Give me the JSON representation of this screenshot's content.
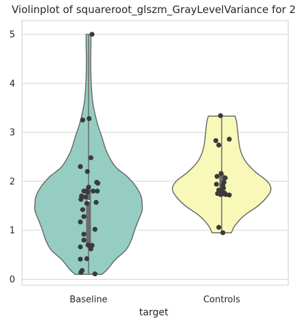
{
  "chart_data": {
    "type": "violin",
    "title": "Violinplot of squareroot_glszm_GrayLevelVariance for 2",
    "xlabel": "target",
    "ylabel": "",
    "categories": [
      "Baseline",
      "Controls"
    ],
    "ylim": [
      -0.12,
      5.28
    ],
    "yticks": [
      0,
      1,
      2,
      3,
      4,
      5
    ],
    "grid": "horizontal",
    "colors": {
      "Baseline": "#95cdc2",
      "Controls": "#f8f8b9",
      "outline": "#6b6b6b",
      "points": "#3a3a3a"
    },
    "violins": [
      {
        "category": "Baseline",
        "range": [
          0.1,
          5.0
        ],
        "box": {
          "q1": 0.68,
          "median": 1.6,
          "q3": 1.85
        },
        "profile": [
          [
            0.1,
            0.25
          ],
          [
            0.2,
            0.35
          ],
          [
            0.4,
            0.5
          ],
          [
            0.6,
            0.7
          ],
          [
            0.8,
            0.8
          ],
          [
            1.0,
            0.86
          ],
          [
            1.2,
            0.93
          ],
          [
            1.4,
            1.0
          ],
          [
            1.55,
            1.0
          ],
          [
            1.7,
            0.98
          ],
          [
            1.9,
            0.88
          ],
          [
            2.1,
            0.72
          ],
          [
            2.3,
            0.5
          ],
          [
            2.6,
            0.34
          ],
          [
            2.9,
            0.25
          ],
          [
            3.2,
            0.16
          ],
          [
            3.6,
            0.08
          ],
          [
            4.0,
            0.05
          ],
          [
            4.4,
            0.04
          ],
          [
            4.8,
            0.045
          ],
          [
            5.0,
            0.045
          ]
        ],
        "points": [
          {
            "x": 0.06,
            "y": 5.0
          },
          {
            "x": -0.1,
            "y": 3.25
          },
          {
            "x": 0.01,
            "y": 3.28
          },
          {
            "x": 0.04,
            "y": 2.48
          },
          {
            "x": -0.14,
            "y": 2.3
          },
          {
            "x": -0.02,
            "y": 2.2
          },
          {
            "x": 0.14,
            "y": 1.98
          },
          {
            "x": 0.16,
            "y": 1.96
          },
          {
            "x": 0.0,
            "y": 1.88
          },
          {
            "x": -0.08,
            "y": 1.8
          },
          {
            "x": -0.04,
            "y": 1.8
          },
          {
            "x": 0.08,
            "y": 1.8
          },
          {
            "x": 0.15,
            "y": 1.8
          },
          {
            "x": -0.02,
            "y": 1.78
          },
          {
            "x": -0.12,
            "y": 1.7
          },
          {
            "x": -0.05,
            "y": 1.68
          },
          {
            "x": -0.13,
            "y": 1.63
          },
          {
            "x": 0.13,
            "y": 1.57
          },
          {
            "x": -0.03,
            "y": 1.55
          },
          {
            "x": -0.1,
            "y": 1.42
          },
          {
            "x": -0.08,
            "y": 1.28
          },
          {
            "x": -0.14,
            "y": 1.17
          },
          {
            "x": 0.11,
            "y": 1.02
          },
          {
            "x": -0.08,
            "y": 0.92
          },
          {
            "x": -0.08,
            "y": 0.8
          },
          {
            "x": -0.01,
            "y": 0.7
          },
          {
            "x": 0.02,
            "y": 0.68
          },
          {
            "x": 0.06,
            "y": 0.69
          },
          {
            "x": -0.14,
            "y": 0.66
          },
          {
            "x": 0.04,
            "y": 0.62
          },
          {
            "x": -0.14,
            "y": 0.41
          },
          {
            "x": -0.03,
            "y": 0.42
          },
          {
            "x": -0.11,
            "y": 0.18
          },
          {
            "x": -0.13,
            "y": 0.14
          },
          {
            "x": 0.11,
            "y": 0.11
          }
        ]
      },
      {
        "category": "Controls",
        "range": [
          0.95,
          3.33
        ],
        "box": {
          "q1": 1.73,
          "median": 1.82,
          "q3": 2.15
        },
        "profile": [
          [
            0.95,
            0.18
          ],
          [
            1.1,
            0.25
          ],
          [
            1.3,
            0.42
          ],
          [
            1.5,
            0.68
          ],
          [
            1.7,
            0.86
          ],
          [
            1.85,
            0.92
          ],
          [
            2.0,
            0.85
          ],
          [
            2.2,
            0.62
          ],
          [
            2.4,
            0.45
          ],
          [
            2.6,
            0.36
          ],
          [
            2.8,
            0.32
          ],
          [
            3.0,
            0.3
          ],
          [
            3.2,
            0.28
          ],
          [
            3.33,
            0.25
          ]
        ],
        "points": [
          {
            "x": -0.02,
            "y": 3.34
          },
          {
            "x": -0.1,
            "y": 2.83
          },
          {
            "x": -0.05,
            "y": 2.74
          },
          {
            "x": 0.13,
            "y": 2.86
          },
          {
            "x": -0.01,
            "y": 2.16
          },
          {
            "x": 0.06,
            "y": 2.07
          },
          {
            "x": -0.08,
            "y": 2.1
          },
          {
            "x": 0.04,
            "y": 1.98
          },
          {
            "x": -0.09,
            "y": 1.94
          },
          {
            "x": 0.02,
            "y": 1.92
          },
          {
            "x": 0.03,
            "y": 1.86
          },
          {
            "x": -0.05,
            "y": 1.82
          },
          {
            "x": 0.0,
            "y": 1.8
          },
          {
            "x": -0.03,
            "y": 1.77
          },
          {
            "x": 0.05,
            "y": 1.76
          },
          {
            "x": -0.07,
            "y": 1.75
          },
          {
            "x": 0.01,
            "y": 1.74
          },
          {
            "x": 0.07,
            "y": 1.73
          },
          {
            "x": -0.02,
            "y": 1.73
          },
          {
            "x": 0.13,
            "y": 1.72
          },
          {
            "x": -0.05,
            "y": 1.06
          },
          {
            "x": 0.02,
            "y": 0.95
          }
        ]
      }
    ]
  }
}
